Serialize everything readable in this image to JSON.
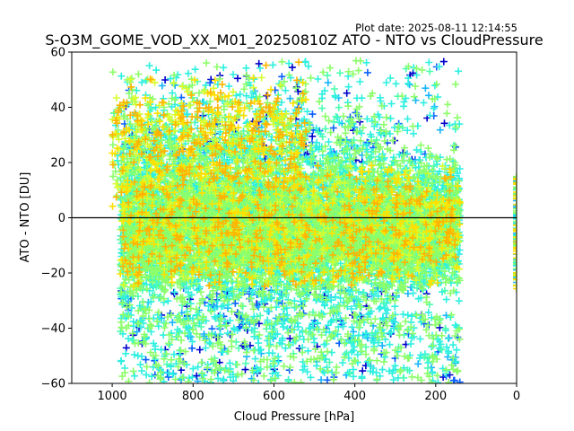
{
  "chart_data": {
    "type": "scatter",
    "title": "S-O3M_GOME_VOD_XX_M01_20250810Z ATO - NTO vs CloudPressure",
    "annotation": "Plot date: 2025-08-11 12:14:55",
    "xlabel": "Cloud Pressure [hPa]",
    "ylabel": "ATO - NTO [DU]",
    "xlim": [
      1100,
      0
    ],
    "ylim": [
      -60,
      60
    ],
    "x_ticks": [
      1000,
      800,
      600,
      400,
      200,
      0
    ],
    "y_ticks": [
      -60,
      -40,
      -20,
      0,
      20,
      40,
      60
    ],
    "x_tick_labels": [
      "1000",
      "800",
      "600",
      "400",
      "200",
      "0"
    ],
    "y_tick_labels": [
      "−60",
      "−40",
      "−20",
      "0",
      "20",
      "40",
      "60"
    ],
    "x_axis_inverted": true,
    "grid": false,
    "zero_line": {
      "y": 0,
      "color": "#000000"
    },
    "marker": "+",
    "colors": [
      "#0000cc",
      "#0a5fff",
      "#18b4ff",
      "#2ef0e0",
      "#4cffb0",
      "#8cff6a",
      "#d6ff30",
      "#ffe000",
      "#ffb400"
    ],
    "clusters": [
      {
        "name": "main",
        "x_range": [
          980,
          140
        ],
        "y_center": -3,
        "y_spread": 16,
        "y_min": -60,
        "y_max": 57
      },
      {
        "name": "top-left-outliers",
        "x_range": [
          1000,
          520
        ],
        "y_center": 28,
        "y_spread": 10
      },
      {
        "name": "zero-pressure-strip",
        "x": 0,
        "y_range": [
          -26,
          15
        ]
      }
    ]
  }
}
